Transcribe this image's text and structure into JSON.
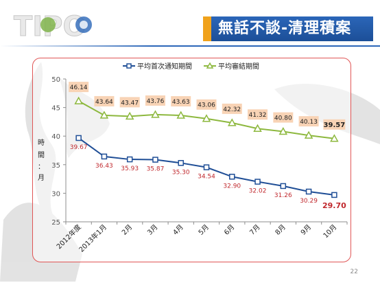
{
  "logo": {
    "text": "TIPO"
  },
  "header": {
    "title": "無話不談-清理積案"
  },
  "page_number": "22",
  "colors": {
    "series1": "#1f4e96",
    "series2": "#8db83e",
    "label_red": "#c0282d",
    "label_box": "#f8d3b5",
    "frame": "#e05555",
    "banner": "#2b66b8",
    "banner_accent": "#f0a21b"
  },
  "chart_data": {
    "type": "line",
    "categories": [
      "2012年度",
      "2013年1月",
      "2月",
      "3月",
      "4月",
      "5月",
      "6月",
      "7月",
      "8月",
      "9月",
      "10月"
    ],
    "ylabel": [
      "時",
      "間",
      "：",
      "月"
    ],
    "ylim": [
      25,
      50
    ],
    "yticks": [
      25,
      30,
      35,
      40,
      45,
      50
    ],
    "grid": false,
    "legend_position": "top",
    "series": [
      {
        "name": "平均首次通知期間",
        "values": [
          39.67,
          36.43,
          35.93,
          35.87,
          35.3,
          34.54,
          32.9,
          32.02,
          31.26,
          30.29,
          29.7
        ],
        "labels": [
          "39.67",
          "36.43",
          "35.93",
          "35.87",
          "35.30",
          "34.54",
          "32.90",
          "32.02",
          "31.26",
          "30.29",
          "29.70"
        ],
        "marker": "square"
      },
      {
        "name": "平均審結期間",
        "values": [
          46.14,
          43.64,
          43.47,
          43.76,
          43.63,
          43.06,
          42.32,
          41.32,
          40.8,
          40.13,
          39.57
        ],
        "labels": [
          "46.14",
          "43.64",
          "43.47",
          "43.76",
          "43.63",
          "43.06",
          "42.32",
          "41.32",
          "40.80",
          "40.13",
          "39.57"
        ],
        "marker": "triangle"
      }
    ]
  }
}
